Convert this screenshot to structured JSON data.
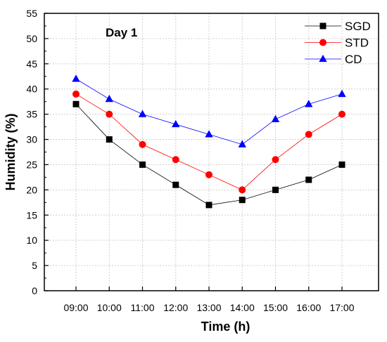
{
  "chart_data": {
    "type": "line",
    "annotation": "Day 1",
    "xlabel": "Time (h)",
    "ylabel": "Humidity (%)",
    "categories": [
      "09:00",
      "10:00",
      "11:00",
      "12:00",
      "13:00",
      "14:00",
      "15:00",
      "16:00",
      "17:00"
    ],
    "ylim": [
      0,
      55
    ],
    "yticks": [
      0,
      5,
      10,
      15,
      20,
      25,
      30,
      35,
      40,
      45,
      50,
      55
    ],
    "grid": true,
    "legend_position": "top-right",
    "series": [
      {
        "name": "SGD",
        "values": [
          37,
          30,
          25,
          21,
          17,
          18,
          20,
          22,
          25
        ],
        "color": "#000000",
        "marker": "square"
      },
      {
        "name": "STD",
        "values": [
          39,
          35,
          29,
          26,
          23,
          20,
          26,
          31,
          35
        ],
        "color": "#ff0000",
        "marker": "circle"
      },
      {
        "name": "CD",
        "values": [
          42,
          38,
          35,
          33,
          31,
          29,
          34,
          37,
          39
        ],
        "color": "#0000ff",
        "marker": "triangle"
      }
    ]
  }
}
